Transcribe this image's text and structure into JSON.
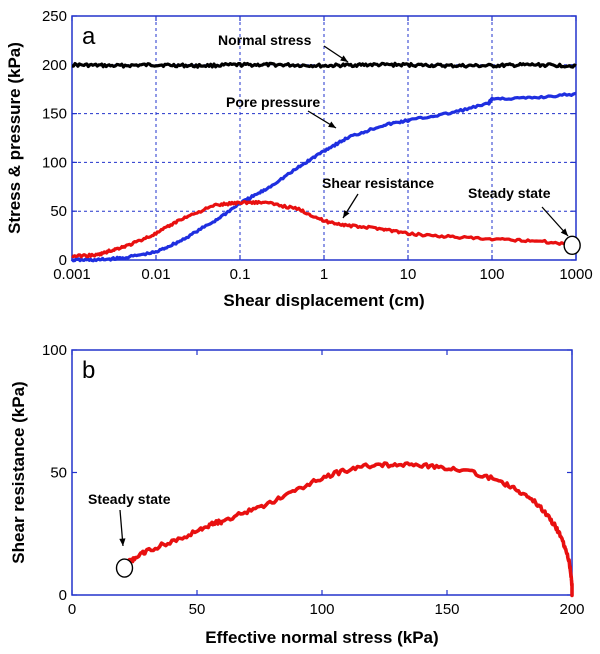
{
  "chart_data": [
    {
      "panel_label": "a",
      "type": "line",
      "xlabel": "Shear displacement (cm)",
      "ylabel": "Stress & pressure (kPa)",
      "x_scale": "log",
      "xlim": [
        0.001,
        1000
      ],
      "ylim": [
        0,
        250
      ],
      "x_ticks": [
        0.001,
        0.01,
        0.1,
        1,
        10,
        100,
        1000
      ],
      "x_tick_labels": [
        "0.001",
        "0.01",
        "0.1",
        "1",
        "10",
        "100",
        "1000"
      ],
      "y_ticks": [
        0,
        50,
        100,
        150,
        200,
        250
      ],
      "y_tick_labels": [
        "0",
        "50",
        "100",
        "150",
        "200",
        "250"
      ],
      "grid": true,
      "series": [
        {
          "name": "Normal stress",
          "color": "#000000",
          "x": [
            0.001,
            0.003,
            0.01,
            0.03,
            0.1,
            0.3,
            1,
            3,
            10,
            30,
            100,
            300,
            1000
          ],
          "y": [
            200,
            199,
            200,
            199,
            200,
            200,
            199,
            200,
            200,
            199,
            199,
            200,
            199
          ]
        },
        {
          "name": "Pore pressure",
          "color": "#1f2fe0",
          "x": [
            0.001,
            0.002,
            0.004,
            0.01,
            0.02,
            0.05,
            0.1,
            0.2,
            0.5,
            1,
            2,
            5,
            10,
            30,
            90,
            100,
            300,
            1000
          ],
          "y": [
            0,
            0,
            2,
            8,
            20,
            40,
            58,
            72,
            95,
            112,
            126,
            138,
            143,
            150,
            160,
            165,
            166,
            170
          ]
        },
        {
          "name": "Shear resistance",
          "color": "#e81010",
          "x": [
            0.001,
            0.002,
            0.003,
            0.005,
            0.01,
            0.02,
            0.05,
            0.1,
            0.2,
            0.5,
            1,
            2,
            5,
            10,
            30,
            100,
            300,
            900
          ],
          "y": [
            4,
            5,
            10,
            16,
            27,
            42,
            56,
            59,
            59,
            52,
            40,
            35,
            32,
            27,
            24,
            21,
            20,
            16
          ]
        }
      ],
      "annotations": [
        {
          "text": "Normal stress",
          "x": 1.8,
          "y": 200
        },
        {
          "text": "Pore pressure",
          "x": 1,
          "y": 111
        },
        {
          "text": "Shear resistance",
          "x": 1.8,
          "y": 40
        },
        {
          "text": "Steady state",
          "x": 900,
          "y": 15
        }
      ],
      "steady_state_point": {
        "x": 900,
        "y": 15
      }
    },
    {
      "panel_label": "b",
      "type": "line",
      "xlabel": "Effective normal stress (kPa)",
      "ylabel": "Shear resistance (kPa)",
      "xlim": [
        0,
        200
      ],
      "ylim": [
        0,
        100
      ],
      "x_ticks": [
        0,
        50,
        100,
        150,
        200
      ],
      "x_tick_labels": [
        "0",
        "50",
        "100",
        "150",
        "200"
      ],
      "y_ticks": [
        0,
        50,
        100
      ],
      "y_tick_labels": [
        "0",
        "50",
        "100"
      ],
      "grid": false,
      "series": [
        {
          "color": "#e81010",
          "x": [
            200,
            200,
            199,
            197,
            194,
            190,
            185,
            178,
            170,
            160,
            150,
            140,
            130,
            120,
            110,
            100,
            90,
            80,
            70,
            60,
            56,
            50,
            40,
            30,
            25,
            22,
            21
          ],
          "y": [
            0,
            4,
            13,
            20,
            27,
            33,
            38,
            43,
            47,
            50,
            52,
            53,
            53,
            53,
            51,
            48,
            43,
            38,
            34,
            30,
            29,
            26,
            22,
            18,
            15,
            13,
            11
          ]
        }
      ],
      "annotations": [
        {
          "text": "Steady state",
          "x": 21,
          "y": 11
        }
      ],
      "steady_state_point": {
        "x": 21,
        "y": 11
      }
    }
  ]
}
